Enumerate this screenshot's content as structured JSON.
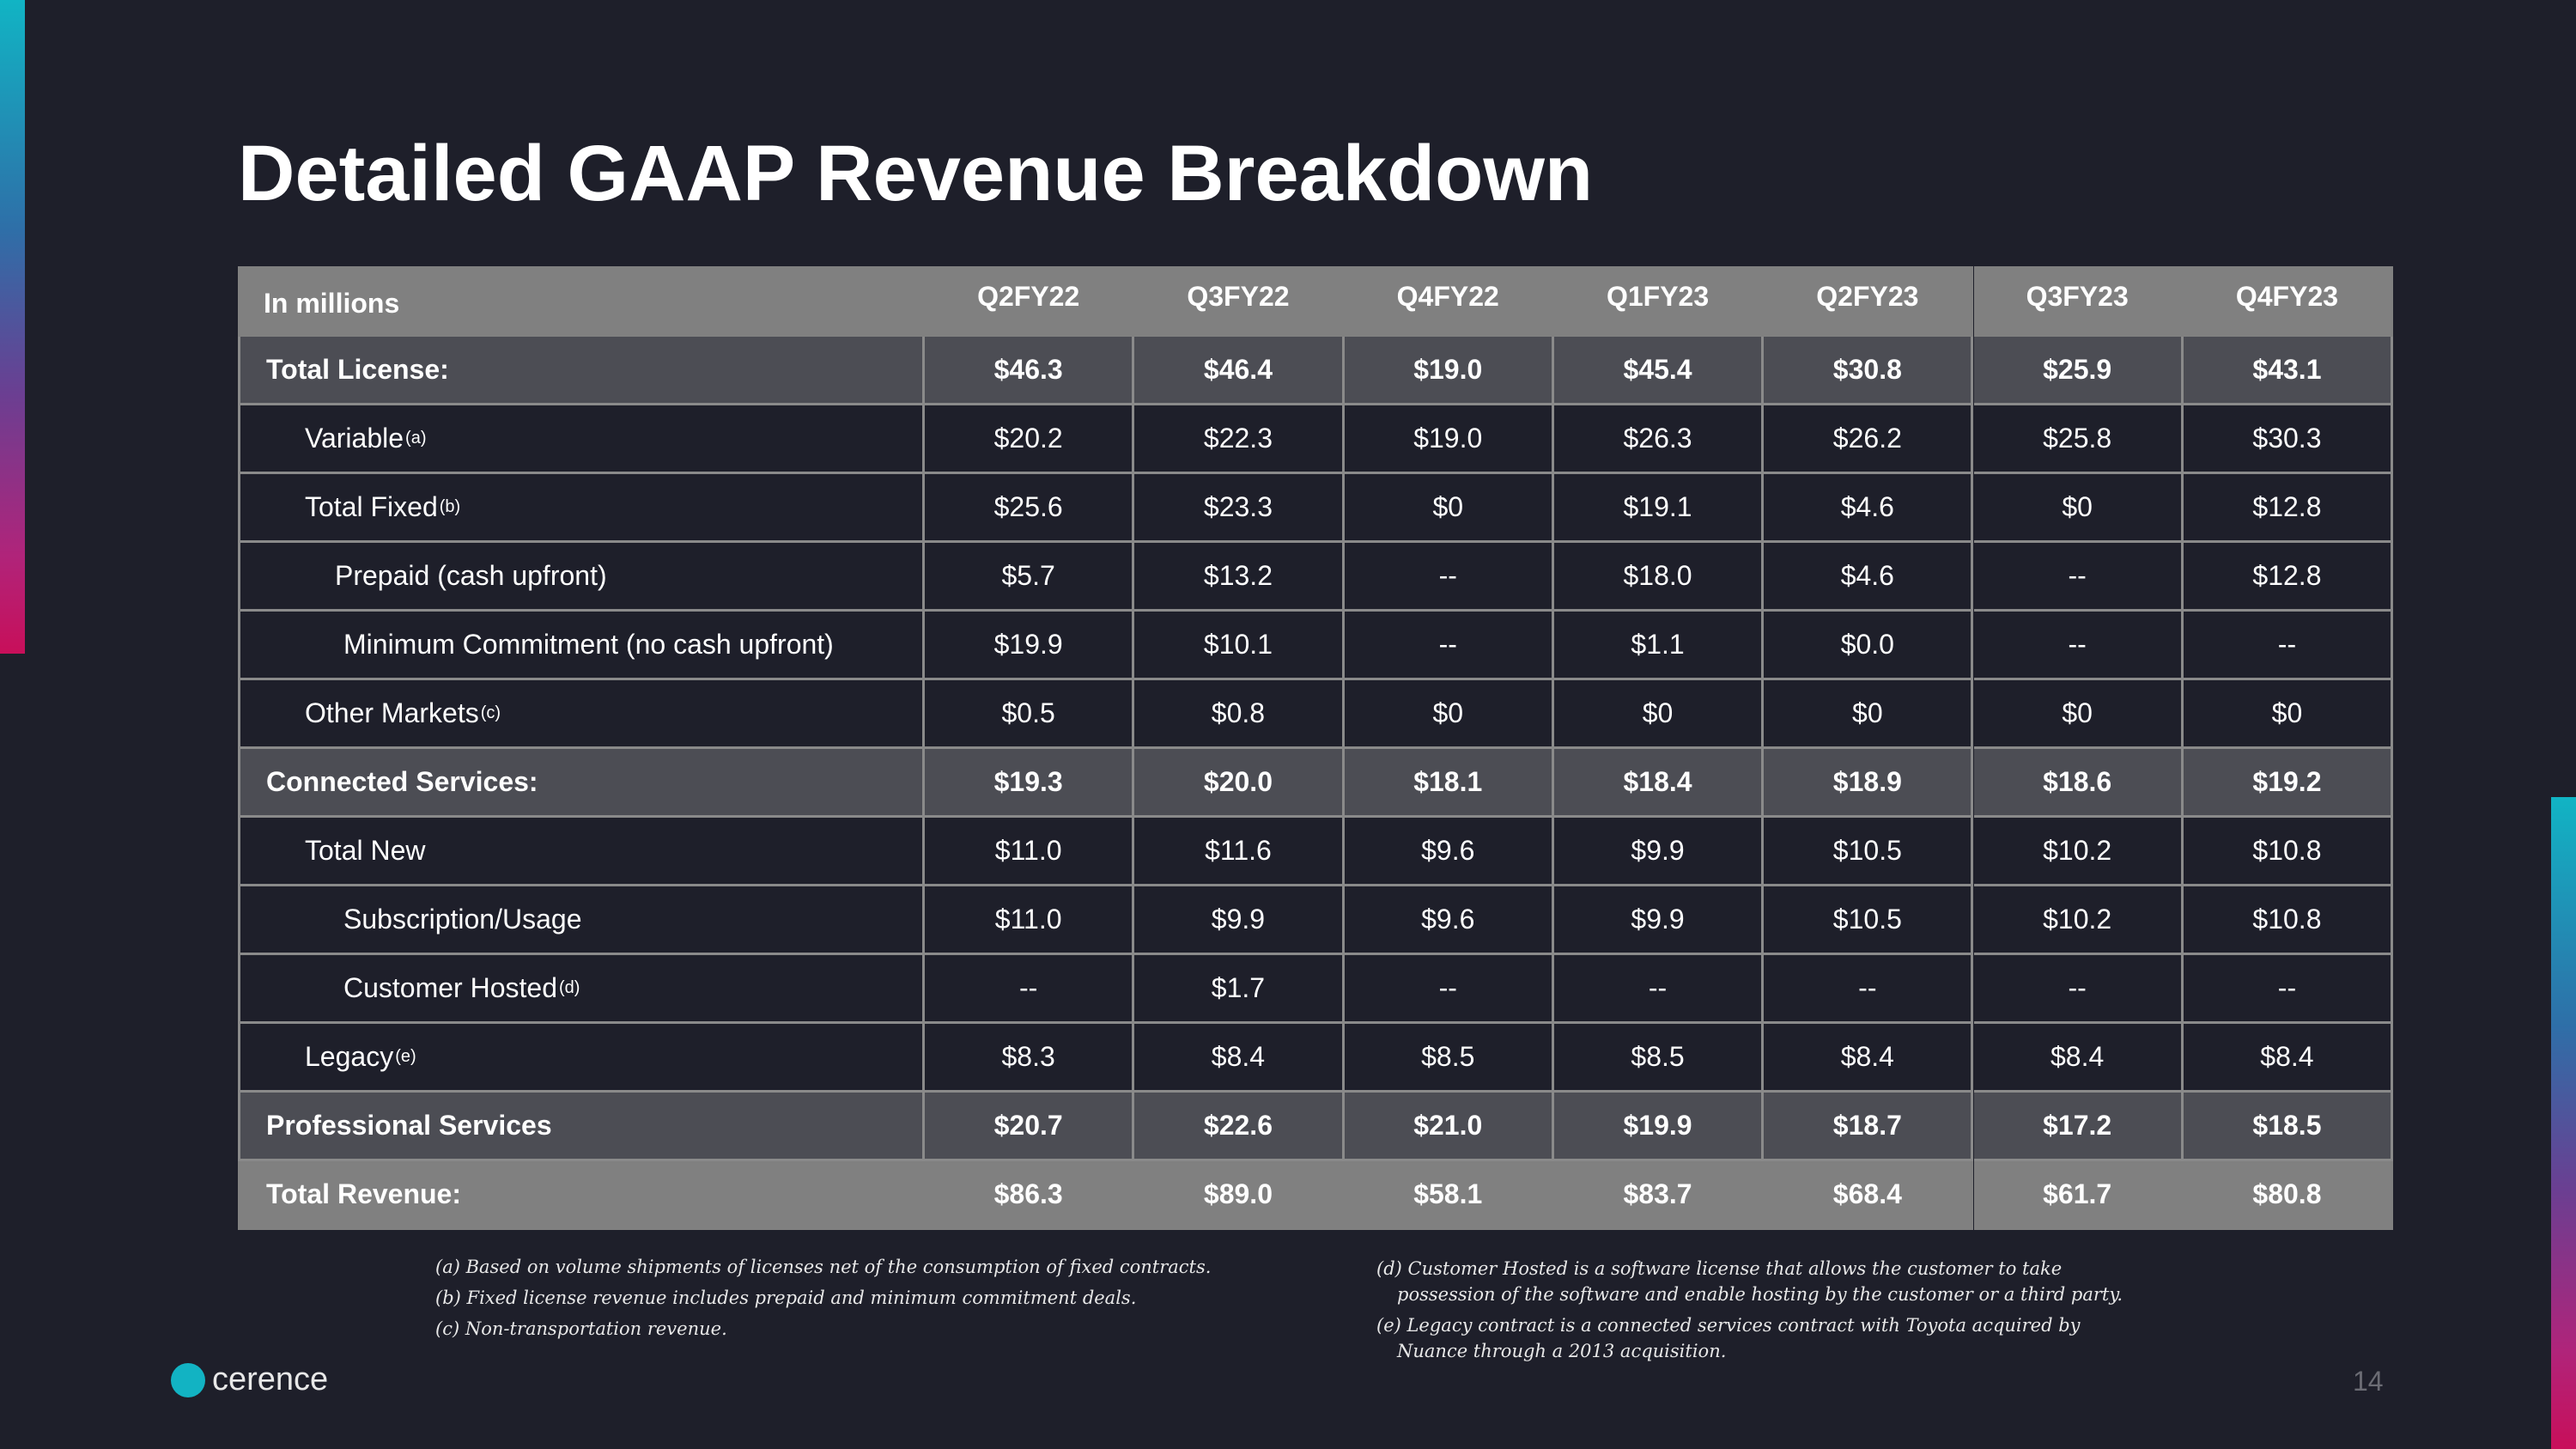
{
  "title": "Detailed GAAP Revenue Breakdown",
  "table": {
    "header": [
      "In millions",
      "Q2FY22",
      "Q3FY22",
      "Q4FY22",
      "Q1FY23",
      "Q2FY23",
      "Q3FY23",
      "Q4FY23"
    ],
    "rows": [
      {
        "label": "Total License:",
        "cells": [
          "$46.3",
          "$46.4",
          "$19.0",
          "$45.4",
          "$30.8",
          "$25.9",
          "$43.1"
        ]
      },
      {
        "label": "Variable",
        "note": "(a)",
        "cells": [
          "$20.2",
          "$22.3",
          "$19.0",
          "$26.3",
          "$26.2",
          "$25.8",
          "$30.3"
        ]
      },
      {
        "label": "Total Fixed",
        "note": "(b)",
        "cells": [
          "$25.6",
          "$23.3",
          "$0",
          "$19.1",
          "$4.6",
          "$0",
          "$12.8"
        ]
      },
      {
        "label": "Prepaid (cash upfront)",
        "cells": [
          "$5.7",
          "$13.2",
          "--",
          "$18.0",
          "$4.6",
          "--",
          "$12.8"
        ]
      },
      {
        "label": "Minimum Commitment (no cash upfront)",
        "cells": [
          "$19.9",
          "$10.1",
          "--",
          "$1.1",
          "$0.0",
          "--",
          "--"
        ]
      },
      {
        "label": "Other Markets",
        "note": "(c)",
        "cells": [
          "$0.5",
          "$0.8",
          "$0",
          "$0",
          "$0",
          "$0",
          "$0"
        ]
      },
      {
        "label": "Connected Services:",
        "cells": [
          "$19.3",
          "$20.0",
          "$18.1",
          "$18.4",
          "$18.9",
          "$18.6",
          "$19.2"
        ]
      },
      {
        "label": "Total New",
        "cells": [
          "$11.0",
          "$11.6",
          "$9.6",
          "$9.9",
          "$10.5",
          "$10.2",
          "$10.8"
        ]
      },
      {
        "label": "Subscription/Usage",
        "cells": [
          "$11.0",
          "$9.9",
          "$9.6",
          "$9.9",
          "$10.5",
          "$10.2",
          "$10.8"
        ]
      },
      {
        "label": "Customer Hosted",
        "note": "(d)",
        "cells": [
          "--",
          "$1.7",
          "--",
          "--",
          "--",
          "--",
          "--"
        ]
      },
      {
        "label": "Legacy",
        "note": "(e)",
        "cells": [
          "$8.3",
          "$8.4",
          "$8.5",
          "$8.5",
          "$8.4",
          "$8.4",
          "$8.4"
        ]
      },
      {
        "label": "Professional Services",
        "cells": [
          "$20.7",
          "$22.6",
          "$21.0",
          "$19.9",
          "$18.7",
          "$17.2",
          "$18.5"
        ]
      },
      {
        "label": "Total Revenue:",
        "cells": [
          "$86.3",
          "$89.0",
          "$58.1",
          "$83.7",
          "$68.4",
          "$61.7",
          "$80.8"
        ]
      }
    ]
  },
  "footnotes": [
    "(a) Based on volume shipments of licenses net of  the consumption of fixed contracts.",
    "(b) Fixed license revenue includes prepaid and minimum commitment deals.",
    "(c) Non-transportation revenue.",
    "(d) Customer Hosted is a software license that allows the customer to take possession of the software and enable hosting by the customer or a third party.",
    "(e) Legacy contract is a connected services contract with Toyota acquired by Nuance through a 2013 acquisition."
  ],
  "logo": "cerence",
  "page_number": "14"
}
